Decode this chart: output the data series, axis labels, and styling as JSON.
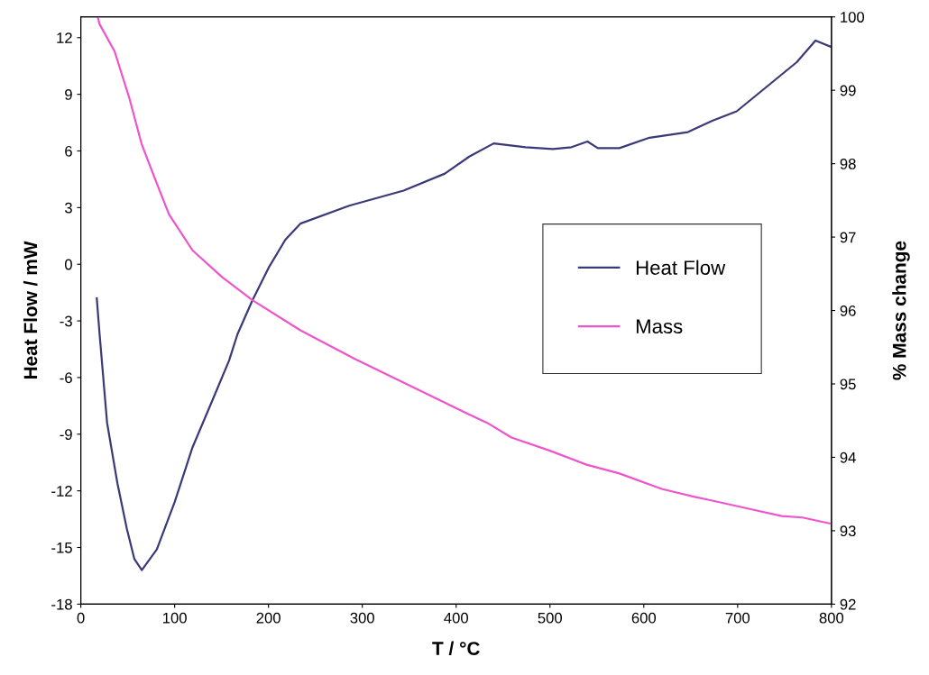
{
  "chart_data": {
    "type": "line",
    "xlabel": "T / °C",
    "ylabel": "Heat Flow / mW",
    "y2label": "% Mass change",
    "xlim": [
      0,
      800
    ],
    "xticks": [
      0,
      100,
      200,
      300,
      400,
      500,
      600,
      700,
      800
    ],
    "ylim": [
      -18,
      13.1
    ],
    "yticks": [
      -18,
      -15,
      -12,
      -9,
      -6,
      -3,
      0,
      3,
      6,
      9,
      12
    ],
    "y2lim": [
      92,
      100
    ],
    "y2ticks": [
      92,
      93,
      94,
      95,
      96,
      97,
      98,
      99,
      100
    ],
    "grid": false,
    "legend": "right",
    "marker": "none",
    "line_style": "solid",
    "series": [
      {
        "name": "Heat Flow",
        "color": "#3a3a78",
        "x": [
          17,
          20,
          28,
          39,
          49,
          57,
          65,
          81,
          100,
          119,
          139,
          158,
          167,
          183,
          200,
          218,
          234,
          286,
          344,
          388,
          414,
          440,
          474,
          503,
          523,
          540,
          551,
          574,
          606,
          647,
          673,
          699,
          731,
          763,
          783,
          800
        ],
        "values": [
          -1.8,
          -3.7,
          -8.4,
          -11.6,
          -14.0,
          -15.6,
          -16.2,
          -15.1,
          -12.6,
          -9.7,
          -7.35,
          -5.1,
          -3.7,
          -1.9,
          -0.2,
          1.3,
          2.15,
          3.1,
          3.9,
          4.8,
          5.7,
          6.4,
          6.2,
          6.1,
          6.2,
          6.5,
          6.15,
          6.15,
          6.7,
          7.0,
          7.6,
          8.1,
          9.4,
          10.7,
          11.85,
          11.5
        ]
      },
      {
        "name": "Mass",
        "color": "#ee55cc",
        "axis": "y2",
        "x": [
          18,
          20,
          36,
          52,
          65,
          81,
          94,
          119,
          151,
          183,
          234,
          292,
          379,
          411,
          433,
          459,
          500,
          539,
          574,
          619,
          651,
          673,
          715,
          747,
          769,
          798
        ],
        "values": [
          100,
          99.9,
          99.53,
          98.88,
          98.26,
          97.73,
          97.31,
          96.82,
          96.45,
          96.14,
          95.73,
          95.34,
          94.8,
          94.6,
          94.47,
          94.27,
          94.09,
          93.9,
          93.78,
          93.57,
          93.47,
          93.41,
          93.29,
          93.2,
          93.18,
          93.1
        ]
      }
    ]
  }
}
